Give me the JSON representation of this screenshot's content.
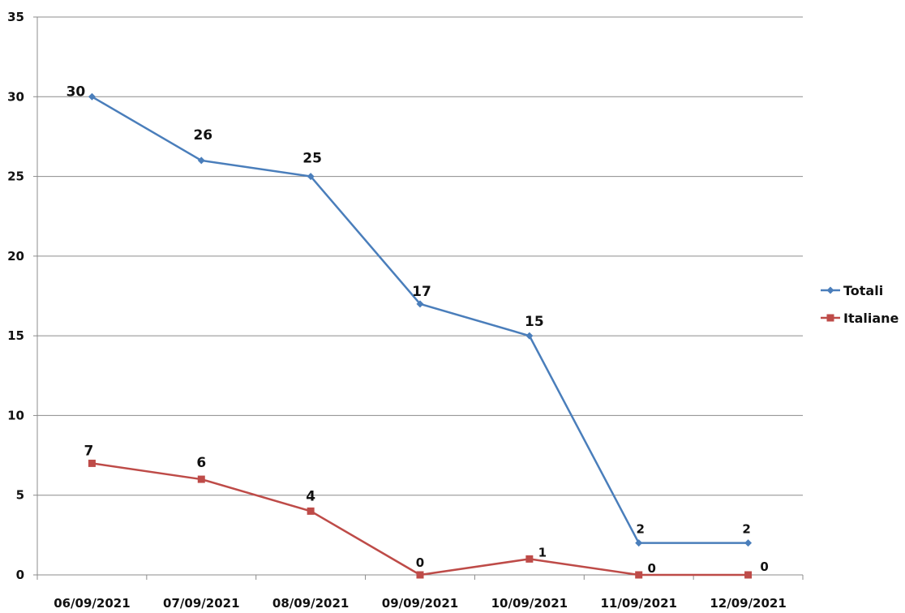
{
  "chart_data": {
    "type": "line",
    "categories": [
      "06/09/2021",
      "07/09/2021",
      "08/09/2021",
      "09/09/2021",
      "10/09/2021",
      "11/09/2021",
      "12/09/2021"
    ],
    "series": [
      {
        "name": "Totali",
        "values": [
          30,
          26,
          25,
          17,
          15,
          2,
          2
        ],
        "color": "#4a7ebb",
        "marker": "diamond"
      },
      {
        "name": "Italiane",
        "values": [
          7,
          6,
          4,
          0,
          1,
          0,
          0
        ],
        "color": "#be4b48",
        "marker": "square"
      }
    ],
    "ylim": [
      0,
      35
    ],
    "yticks": [
      0,
      5,
      10,
      15,
      20,
      25,
      30,
      35
    ],
    "grid": true,
    "legend": "right",
    "title": "",
    "xlabel": "",
    "ylabel": ""
  }
}
